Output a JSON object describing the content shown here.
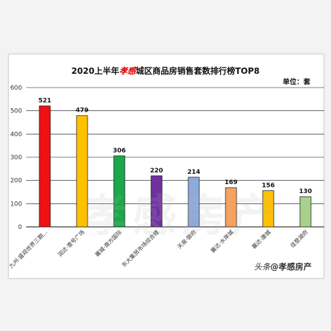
{
  "header": {
    "title_prefix": "2020上半年",
    "title_highlight": "孝感",
    "title_suffix": "城区商品房销售套数排行榜TOP8",
    "unit": "单位：套"
  },
  "watermark": "孝感房产",
  "footer": {
    "prefix": "头条",
    "handle": "@孝感房产"
  },
  "chart_data": {
    "type": "bar",
    "title": "2020上半年孝感城区商品房销售套数排行榜TOP8",
    "unit": "单位：套",
    "categories": [
      "九州·盛观世界三期...",
      "润达·壹号广场",
      "襄城·南方国际",
      "东大集贸市场综合楼",
      "天泉·御府",
      "襄达·水岸城",
      "襄达·康城",
      "佳登湖府"
    ],
    "values": [
      521,
      479,
      306,
      220,
      214,
      169,
      156,
      130
    ],
    "colors": [
      "#ee1111",
      "#ffc000",
      "#1aa84a",
      "#7030a0",
      "#8eaadb",
      "#f4a261",
      "#ffc000",
      "#a9d18e"
    ],
    "yticks": [
      0,
      100,
      200,
      300,
      400,
      500,
      600
    ],
    "ylim": [
      0,
      600
    ],
    "grid": true
  }
}
